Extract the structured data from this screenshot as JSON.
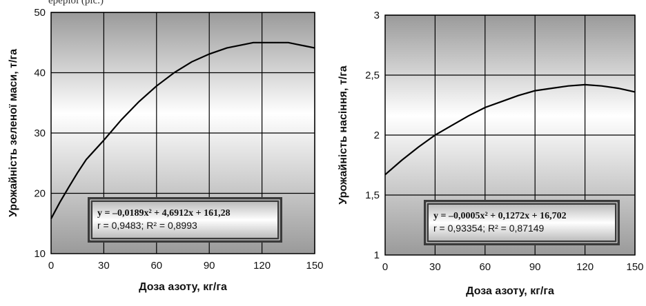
{
  "page": {
    "top_fragment": "ереріоі (ріс.)"
  },
  "chart_data": [
    {
      "type": "line",
      "xlabel": "Доза азоту, кг/га",
      "ylabel": "Урожайність зеленої маси, т/га",
      "xlim": [
        0,
        150
      ],
      "ylim": [
        10,
        50
      ],
      "x_ticks": [
        0,
        30,
        60,
        90,
        120,
        150
      ],
      "y_ticks": [
        10,
        20,
        30,
        40,
        50
      ],
      "x_tick_labels": [
        "0",
        "30",
        "60",
        "90",
        "120",
        "150"
      ],
      "y_tick_labels": [
        "10",
        "20",
        "30",
        "40",
        "50"
      ],
      "grid": true,
      "series": [
        {
          "x": [
            0,
            5,
            10,
            15,
            20,
            30,
            40,
            50,
            60,
            70,
            80,
            90,
            100,
            110,
            115,
            120,
            130,
            135,
            140,
            145,
            150
          ],
          "y": [
            15.8,
            18.5,
            21.0,
            23.4,
            25.6,
            28.8,
            32.2,
            35.2,
            37.8,
            40.0,
            41.8,
            43.1,
            44.1,
            44.7,
            45.0,
            45.0,
            45.0,
            45.0,
            44.7,
            44.4,
            44.1
          ]
        }
      ],
      "equation": "y = –0,0189x² + 4,6912x + 161,28",
      "stats": "r = 0,9483;  R² = 0,8993"
    },
    {
      "type": "line",
      "xlabel": "Доза азоту, кг/га",
      "ylabel": "Урожайність насіння, т/га",
      "xlim": [
        0,
        150
      ],
      "ylim": [
        1,
        3
      ],
      "x_ticks": [
        0,
        30,
        60,
        90,
        120,
        150
      ],
      "y_ticks": [
        1,
        1.5,
        2,
        2.5,
        3
      ],
      "x_tick_labels": [
        "0",
        "30",
        "60",
        "90",
        "120",
        "150"
      ],
      "y_tick_labels": [
        "1",
        "1,5",
        "2",
        "2,5",
        "3"
      ],
      "grid": true,
      "series": [
        {
          "x": [
            0,
            10,
            20,
            30,
            40,
            50,
            60,
            70,
            80,
            90,
            100,
            110,
            120,
            130,
            140,
            150
          ],
          "y": [
            1.67,
            1.79,
            1.9,
            2.0,
            2.08,
            2.16,
            2.23,
            2.28,
            2.33,
            2.37,
            2.39,
            2.41,
            2.42,
            2.41,
            2.39,
            2.36
          ]
        }
      ],
      "equation": "y = –0,0005x² + 0,1272x + 16,702",
      "stats": "r = 0,93354;  R² = 0,87149"
    }
  ]
}
